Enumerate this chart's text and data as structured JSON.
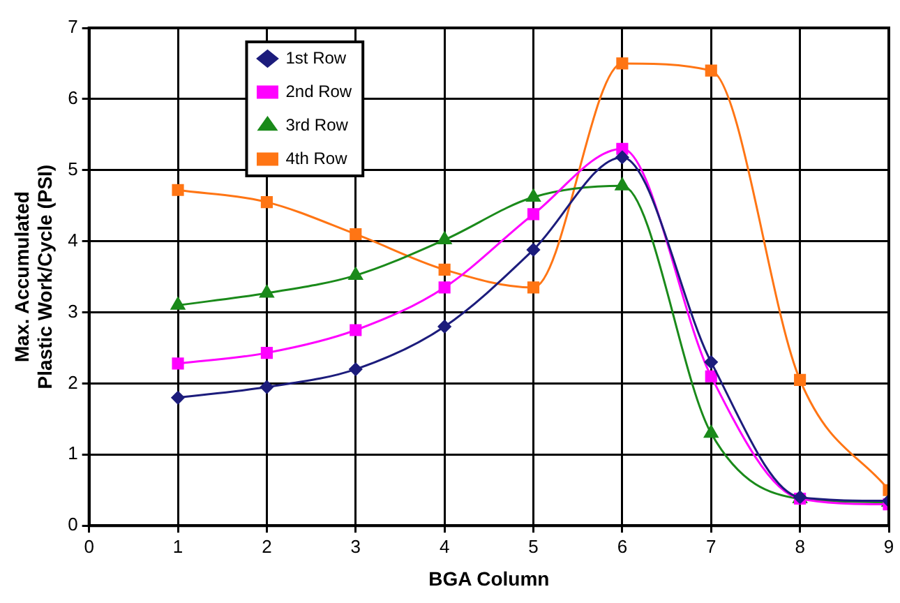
{
  "chart_data": {
    "type": "line",
    "xlabel": "BGA Column",
    "ylabel": "Max. Accumulated\nPlastic Work/Cycle (PSI)",
    "x": [
      1,
      2,
      3,
      4,
      5,
      6,
      7,
      8,
      9
    ],
    "xlim": [
      0,
      9
    ],
    "xticks": [
      0,
      1,
      2,
      3,
      4,
      5,
      6,
      7,
      8,
      9
    ],
    "ylim": [
      0,
      7
    ],
    "yticks": [
      0,
      1,
      2,
      3,
      4,
      5,
      6,
      7
    ],
    "grid": true,
    "legend": "top",
    "line_style": "solid",
    "series": [
      {
        "name": "1st Row",
        "color": "#1c1c7c",
        "marker": "diamond",
        "values": [
          1.8,
          1.95,
          2.2,
          2.8,
          3.88,
          5.18,
          2.3,
          0.4,
          0.35
        ]
      },
      {
        "name": "2nd Row",
        "color": "#ff00ff",
        "marker": "square",
        "values": [
          2.28,
          2.43,
          2.75,
          3.35,
          4.38,
          5.3,
          2.1,
          0.38,
          0.3
        ]
      },
      {
        "name": "3rd Row",
        "color": "#1a8a1a",
        "marker": "triangle",
        "values": [
          3.1,
          3.27,
          3.52,
          4.02,
          4.62,
          4.78,
          1.3,
          0.38,
          0.33
        ]
      },
      {
        "name": "4th Row",
        "color": "#ff7514",
        "marker": "square",
        "values": [
          4.72,
          4.55,
          4.1,
          3.6,
          3.35,
          6.5,
          6.4,
          2.05,
          0.5
        ]
      }
    ]
  }
}
